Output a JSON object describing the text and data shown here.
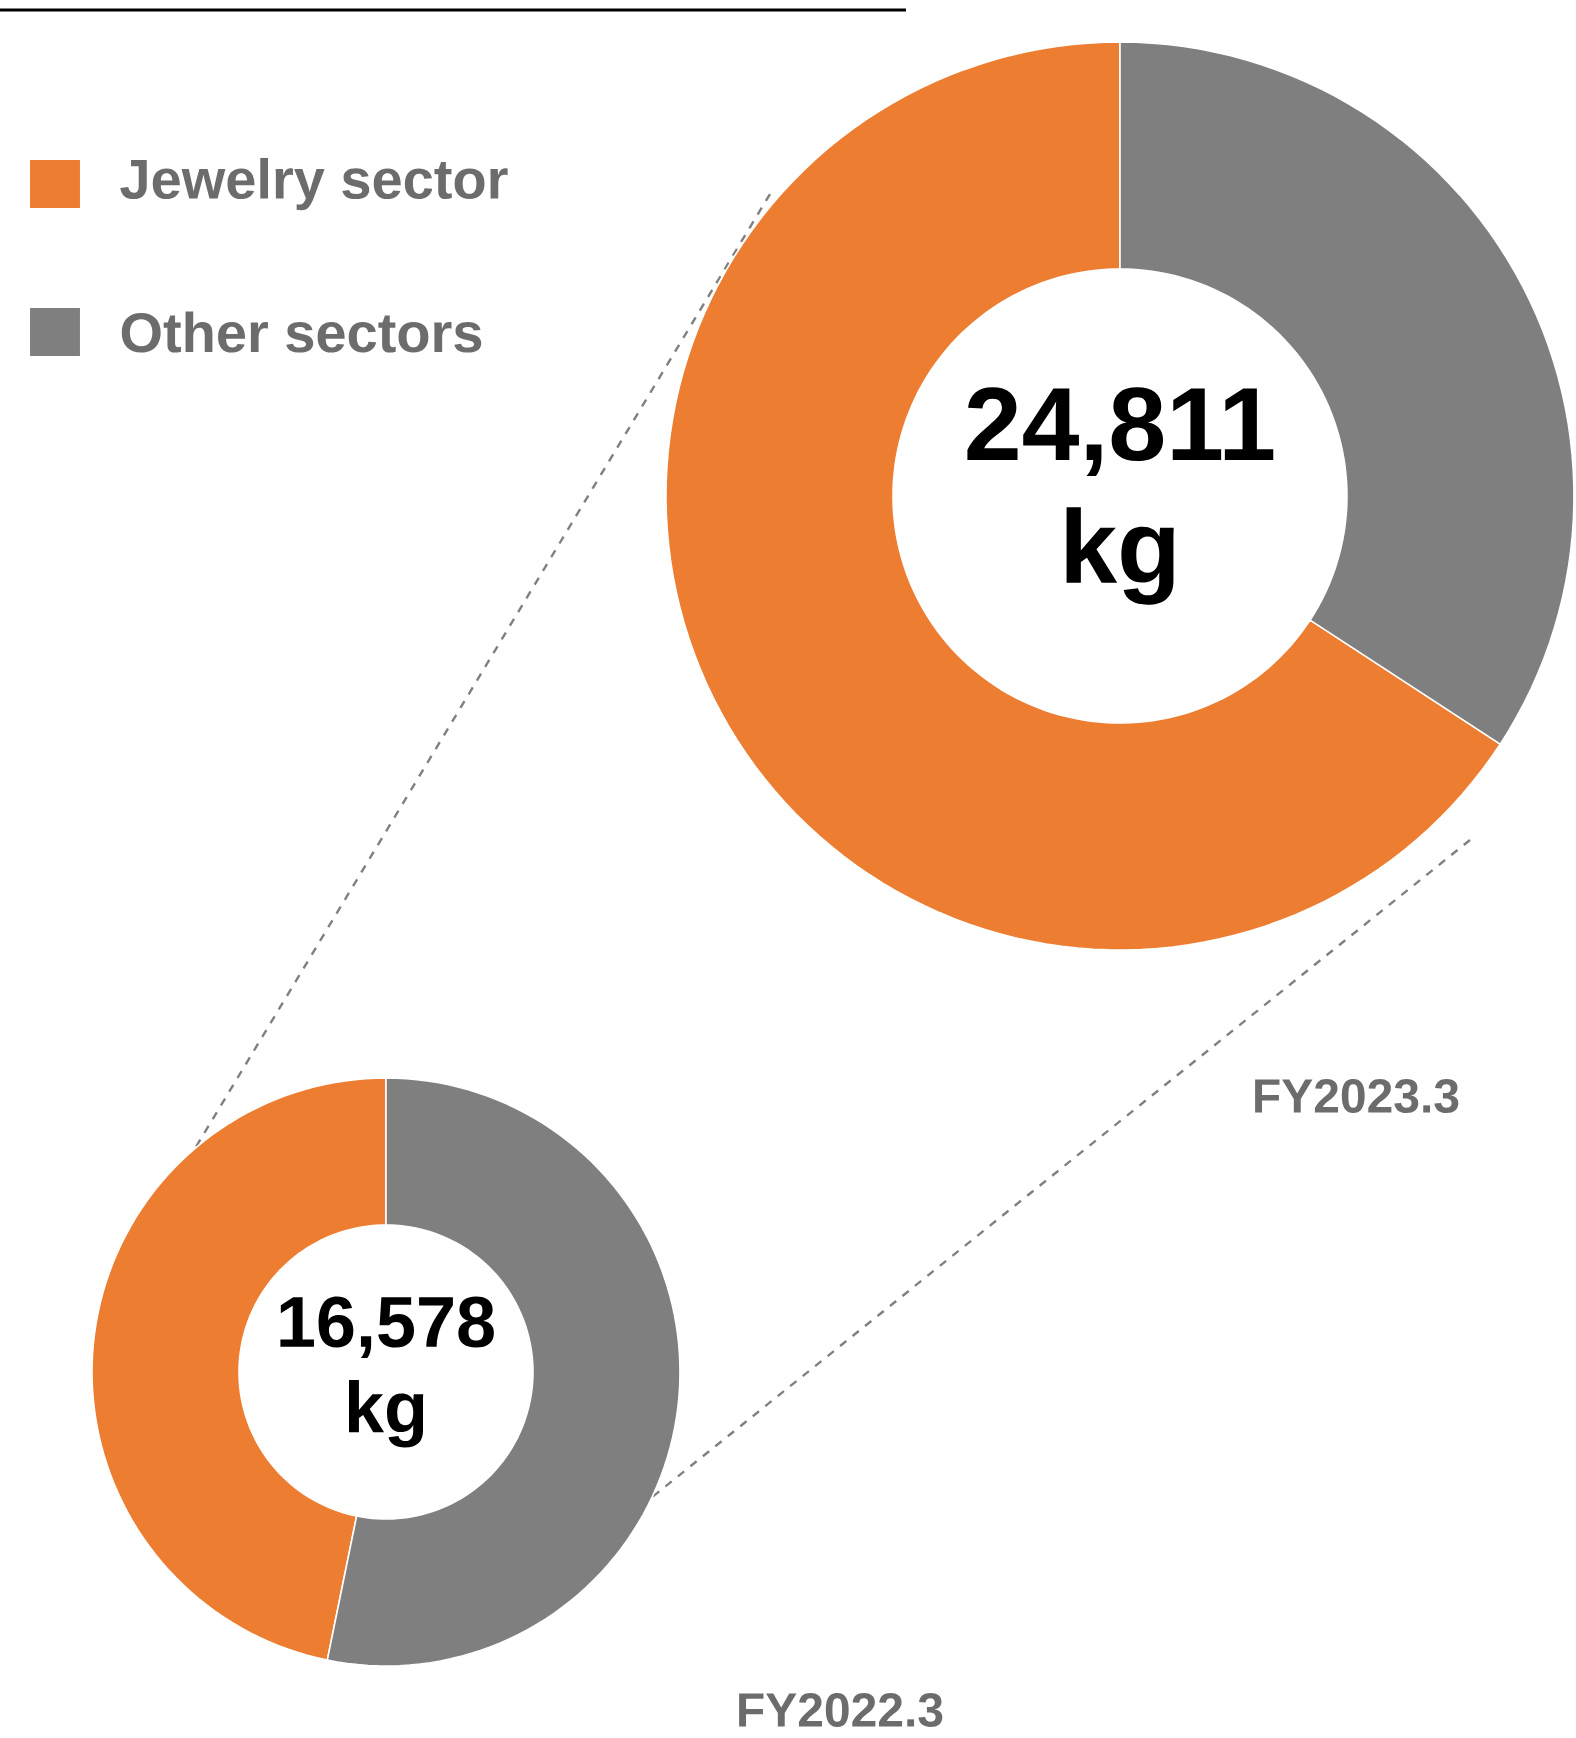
{
  "chart_data": [
    {
      "type": "donut",
      "title": "FY2023.3",
      "categories": [
        "Jewelry sector",
        "Other sectors"
      ],
      "values": [
        65.8,
        34.2
      ],
      "colors": [
        "#ed7d31",
        "#7f7f7f"
      ],
      "annotations": [
        "24,811 kg"
      ],
      "legend": "top left"
    },
    {
      "type": "donut",
      "title": "FY2022.3",
      "categories": [
        null,
        null
      ],
      "values": [
        46.8,
        53.2
      ],
      "colors": [
        "#ed7d31",
        "#7f7f7f"
      ],
      "annotations": [
        "16,578 kg"
      ]
    }
  ]
}
